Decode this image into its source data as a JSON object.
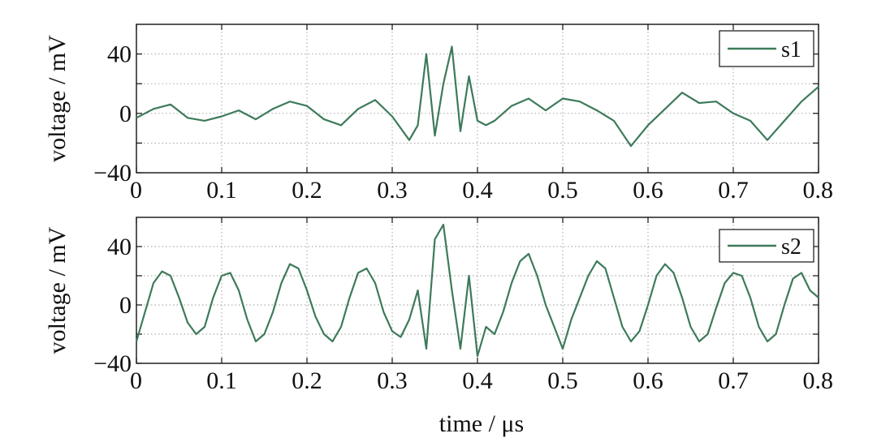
{
  "chart_data": [
    {
      "type": "line",
      "title": "",
      "xlabel": "",
      "ylabel": "voltage / mV",
      "xlim": [
        0,
        0.8
      ],
      "ylim": [
        -40,
        60
      ],
      "xticks": [
        "0",
        "0.1",
        "0.2",
        "0.3",
        "0.4",
        "0.5",
        "0.6",
        "0.7",
        "0.8"
      ],
      "yticks": [
        "−40",
        "0",
        "40"
      ],
      "grid": true,
      "legend_position": "top-right",
      "color": "#3d7a5a",
      "series": [
        {
          "name": "s1",
          "x": [
            0,
            0.02,
            0.04,
            0.06,
            0.08,
            0.1,
            0.12,
            0.14,
            0.16,
            0.18,
            0.2,
            0.22,
            0.24,
            0.26,
            0.28,
            0.3,
            0.31,
            0.32,
            0.33,
            0.34,
            0.35,
            0.36,
            0.37,
            0.38,
            0.39,
            0.4,
            0.41,
            0.42,
            0.44,
            0.46,
            0.48,
            0.5,
            0.52,
            0.54,
            0.56,
            0.58,
            0.6,
            0.62,
            0.64,
            0.66,
            0.68,
            0.7,
            0.72,
            0.74,
            0.76,
            0.78,
            0.8
          ],
          "y": [
            -3,
            3,
            6,
            -3,
            -5,
            -2,
            2,
            -4,
            3,
            8,
            5,
            -4,
            -8,
            3,
            9,
            -2,
            -10,
            -18,
            -8,
            40,
            -15,
            20,
            45,
            -12,
            25,
            -5,
            -8,
            -5,
            5,
            10,
            2,
            10,
            8,
            2,
            -5,
            -22,
            -8,
            3,
            14,
            7,
            8,
            0,
            -5,
            -18,
            -5,
            8,
            18
          ]
        }
      ]
    },
    {
      "type": "line",
      "title": "",
      "xlabel": "time / μs",
      "ylabel": "voltage / mV",
      "xlim": [
        0,
        0.8
      ],
      "ylim": [
        -40,
        60
      ],
      "xticks": [
        "0",
        "0.1",
        "0.2",
        "0.3",
        "0.4",
        "0.5",
        "0.6",
        "0.7",
        "0.8"
      ],
      "yticks": [
        "−40",
        "0",
        "40"
      ],
      "grid": true,
      "legend_position": "top-right",
      "color": "#3d7a5a",
      "series": [
        {
          "name": "s2",
          "x": [
            0,
            0.01,
            0.02,
            0.03,
            0.04,
            0.05,
            0.06,
            0.07,
            0.08,
            0.09,
            0.1,
            0.11,
            0.12,
            0.13,
            0.14,
            0.15,
            0.16,
            0.17,
            0.18,
            0.19,
            0.2,
            0.21,
            0.22,
            0.23,
            0.24,
            0.25,
            0.26,
            0.27,
            0.28,
            0.29,
            0.3,
            0.31,
            0.32,
            0.33,
            0.34,
            0.35,
            0.36,
            0.37,
            0.38,
            0.39,
            0.4,
            0.41,
            0.42,
            0.43,
            0.44,
            0.45,
            0.46,
            0.47,
            0.48,
            0.49,
            0.5,
            0.51,
            0.52,
            0.53,
            0.54,
            0.55,
            0.56,
            0.57,
            0.58,
            0.59,
            0.6,
            0.61,
            0.62,
            0.63,
            0.64,
            0.65,
            0.66,
            0.67,
            0.68,
            0.69,
            0.7,
            0.71,
            0.72,
            0.73,
            0.74,
            0.75,
            0.76,
            0.77,
            0.78,
            0.79,
            0.8
          ],
          "y": [
            -25,
            -5,
            15,
            23,
            20,
            5,
            -12,
            -20,
            -15,
            5,
            20,
            22,
            10,
            -10,
            -25,
            -20,
            -5,
            15,
            28,
            25,
            10,
            -8,
            -20,
            -25,
            -15,
            5,
            22,
            25,
            15,
            -5,
            -18,
            -22,
            -10,
            10,
            -30,
            45,
            55,
            10,
            -30,
            20,
            -35,
            -15,
            -20,
            -5,
            15,
            30,
            35,
            20,
            0,
            -15,
            -30,
            -10,
            5,
            20,
            30,
            25,
            5,
            -15,
            -25,
            -18,
            0,
            20,
            28,
            22,
            5,
            -15,
            -25,
            -20,
            -2,
            15,
            22,
            20,
            5,
            -15,
            -25,
            -20,
            0,
            18,
            22,
            10,
            5
          ]
        }
      ]
    }
  ]
}
